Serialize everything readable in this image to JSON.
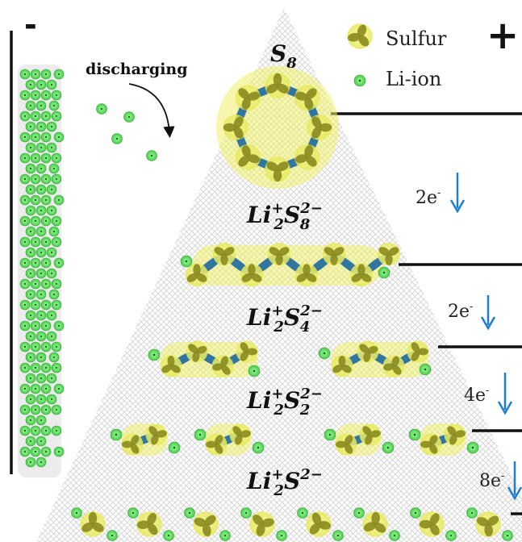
{
  "terminals": {
    "negative": "-",
    "positive": "+"
  },
  "process_label": "discharging",
  "legend": {
    "sulfur": "Sulfur",
    "li_ion": "Li-ion"
  },
  "species": {
    "s8": {
      "base": "S",
      "sub": "8"
    },
    "li2s8": {
      "li": "Li",
      "li_sup": "+",
      "li_sub": "2",
      "s": "S",
      "s_sup": "2−",
      "s_sub": "8"
    },
    "li2s4": {
      "li": "Li",
      "li_sup": "+",
      "li_sub": "2",
      "s": "S",
      "s_sup": "2−",
      "s_sub": "4"
    },
    "li2s2": {
      "li": "Li",
      "li_sup": "+",
      "li_sub": "2",
      "s": "S",
      "s_sup": "2−",
      "s_sub": "2"
    },
    "li2s": {
      "li": "Li",
      "li_sup": "+",
      "li_sub": "2",
      "s": "S",
      "s_sup": "2−"
    }
  },
  "electron_steps": [
    {
      "coef": "2e",
      "sup": "-"
    },
    {
      "coef": "2e",
      "sup": "-"
    },
    {
      "coef": "4e",
      "sup": "-"
    },
    {
      "coef": "8e",
      "sup": "-"
    }
  ],
  "colors": {
    "li_ion": "#5fe05f",
    "sulfur_glow": "#eef06a",
    "sulfur_lobe": "#8a8a1e",
    "bond": "#1f6aa0",
    "arrow": "#1e7fd0",
    "anode_bg": "#ececec"
  }
}
